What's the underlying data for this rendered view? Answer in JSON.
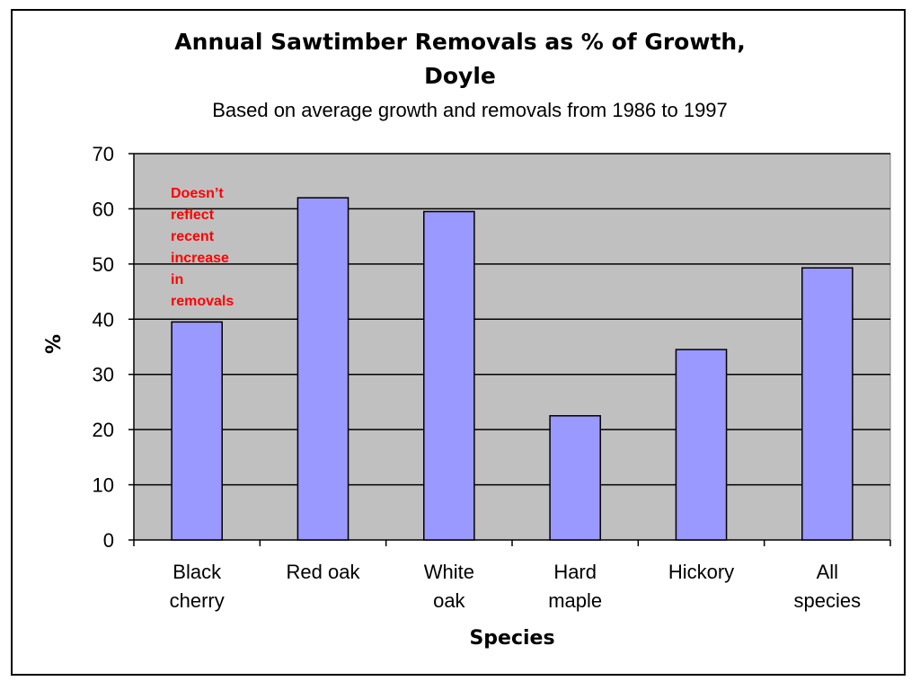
{
  "chart_data": {
    "type": "bar",
    "title_line1": "Annual Sawtimber Removals as % of Growth,",
    "title_line2": "Doyle",
    "subtitle": "Based on average growth and removals from 1986 to 1997",
    "xlabel": "Species",
    "ylabel": "%",
    "ylim": [
      0,
      70
    ],
    "yticks": [
      0,
      10,
      20,
      30,
      40,
      50,
      60,
      70
    ],
    "categories": [
      [
        "Black",
        "cherry"
      ],
      [
        "Red oak"
      ],
      [
        "White",
        "oak"
      ],
      [
        "Hard",
        "maple"
      ],
      [
        "Hickory"
      ],
      [
        "All",
        "species"
      ]
    ],
    "values": [
      39.5,
      62,
      59.5,
      22.5,
      34.5,
      49.3
    ],
    "grid": true,
    "legend": "none",
    "annotation": {
      "lines": [
        "Doesn’t",
        "reflect",
        "recent",
        "increase",
        "in",
        "removals"
      ],
      "color": "#ff0000"
    },
    "colors": {
      "bar_fill": "#9999ff",
      "bar_stroke": "#000000",
      "plot_background": "#c0c0c0",
      "gridline": "#000000"
    }
  }
}
